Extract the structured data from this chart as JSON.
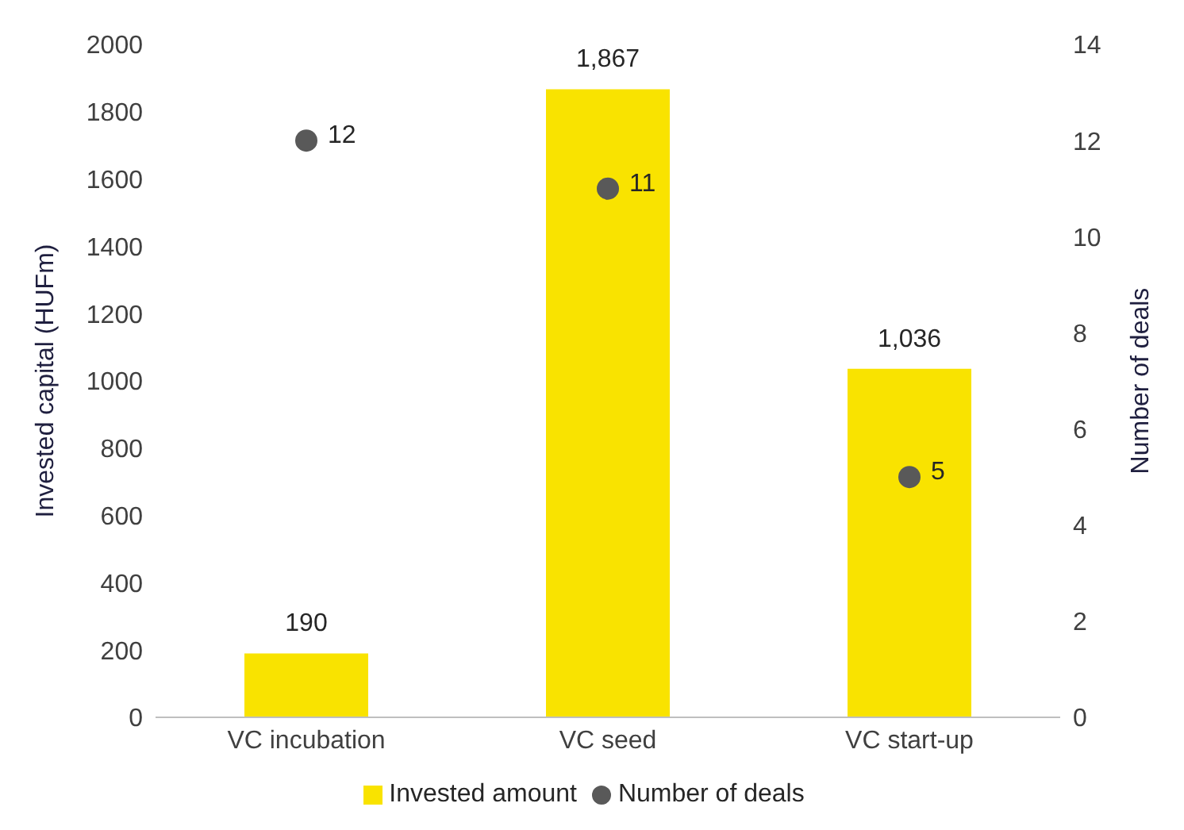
{
  "chart_data": {
    "type": "bar",
    "categories": [
      "VC incubation",
      "VC seed",
      "VC start-up"
    ],
    "ylabel": "Invested capital (HUFm)",
    "y2label": "Number of deals",
    "ylim": [
      0,
      2000
    ],
    "yticks": [
      0,
      200,
      400,
      600,
      800,
      1000,
      1200,
      1400,
      1600,
      1800,
      2000
    ],
    "y2lim": [
      0,
      14
    ],
    "y2ticks": [
      0,
      2,
      4,
      6,
      8,
      10,
      12,
      14
    ],
    "series": [
      {
        "name": "Invested amount",
        "color": "#f9e300",
        "values": [
          190,
          1867,
          1036
        ],
        "value_labels": [
          "190",
          "1,867",
          "1,036"
        ]
      },
      {
        "name": "Number of deals",
        "type": "scatter",
        "axis": "y2",
        "color": "#595959",
        "values": [
          12,
          11,
          5
        ],
        "value_labels": [
          "12",
          "11",
          "5"
        ]
      }
    ],
    "marker": "circle",
    "grid": false,
    "legend": "bottom"
  }
}
